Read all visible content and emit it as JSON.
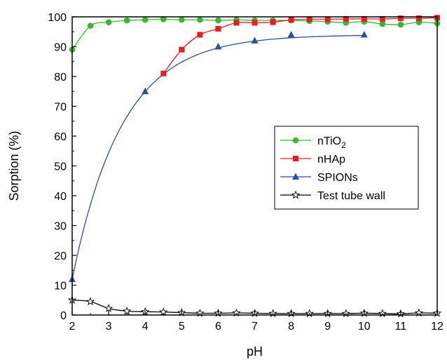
{
  "chart_data": {
    "type": "line",
    "xlabel": "pH",
    "ylabel": "Sorption (%)",
    "xlim": [
      2,
      12
    ],
    "ylim": [
      0,
      100
    ],
    "xticks": [
      2,
      3,
      4,
      5,
      6,
      7,
      8,
      9,
      10,
      11,
      12
    ],
    "yticks": [
      0,
      10,
      20,
      30,
      40,
      50,
      60,
      70,
      80,
      90,
      100
    ],
    "grid": false,
    "legend_position": "center-right",
    "series": [
      {
        "name": "nTiO",
        "name_sub": "2",
        "color": "#3cb531",
        "marker": "circle",
        "x": [
          2,
          2.5,
          3,
          3.5,
          4,
          4.5,
          5,
          5.5,
          6,
          6.5,
          7,
          7.5,
          8,
          8.5,
          9,
          9.5,
          10,
          10.5,
          11,
          11.5,
          12
        ],
        "y": [
          89,
          97,
          98.2,
          98.8,
          99,
          99.2,
          99,
          99,
          98.8,
          99,
          98.8,
          98.8,
          98.8,
          98.6,
          98.4,
          98,
          98.4,
          97.6,
          97.4,
          98.2,
          97.8
        ]
      },
      {
        "name": "nHAp",
        "color": "#e31e24",
        "marker": "square",
        "x": [
          4.5,
          5,
          5.5,
          6,
          6.5,
          7,
          7.5,
          8,
          8.5,
          9,
          9.5,
          10,
          10.5,
          11,
          11.5,
          12
        ],
        "y": [
          81,
          89,
          94,
          96,
          98,
          98,
          98.2,
          99,
          99.2,
          99.2,
          99.3,
          99.3,
          99.3,
          99.5,
          99.5,
          99.7
        ]
      },
      {
        "name": "SPIONs",
        "color": "#2e4ea1",
        "marker": "triangle",
        "x": [
          2,
          4,
          6,
          7,
          8,
          10
        ],
        "y": [
          12,
          75,
          90,
          92,
          94,
          94
        ]
      },
      {
        "name": "Test tube wall",
        "color": "#000000",
        "marker": "star",
        "x": [
          2,
          2.5,
          3,
          3.5,
          4,
          4.5,
          5,
          5.5,
          6,
          6.5,
          7,
          7.5,
          8,
          8.5,
          9,
          9.5,
          10,
          10.5,
          11,
          11.5,
          12
        ],
        "y": [
          5,
          4.5,
          2.2,
          1.3,
          1.1,
          1.0,
          0.8,
          0.6,
          0.6,
          0.7,
          0.6,
          0.5,
          0.5,
          0.5,
          0.5,
          0.5,
          0.6,
          0.5,
          0.4,
          0.7,
          0.6
        ]
      }
    ]
  }
}
